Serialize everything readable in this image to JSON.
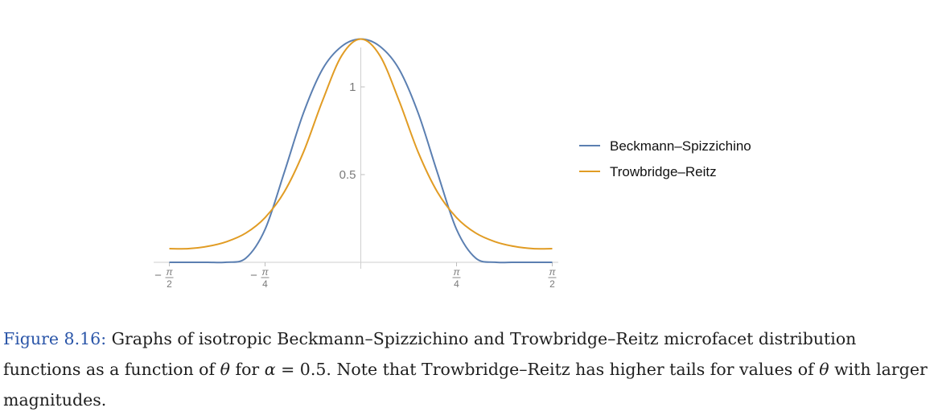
{
  "chart_data": {
    "type": "line",
    "x_ticks": [
      {
        "value": -1.5708,
        "sign": "−",
        "num": "π",
        "den": "2"
      },
      {
        "value": -0.7854,
        "sign": "−",
        "num": "π",
        "den": "4"
      },
      {
        "value": 0.7854,
        "sign": "",
        "num": "π",
        "den": "4"
      },
      {
        "value": 1.5708,
        "sign": "",
        "num": "π",
        "den": "2"
      }
    ],
    "y_ticks": [
      {
        "value": 0.5,
        "label": "0.5"
      },
      {
        "value": 1,
        "label": "1"
      }
    ],
    "xlim": [
      -1.62,
      1.62
    ],
    "ylim": [
      0,
      1.28
    ],
    "grid": false,
    "legend_position": "right",
    "series": [
      {
        "name": "Beckmann–Spizzichino",
        "color": "#5b7fb1",
        "x": [
          -1.5708,
          -1.4137,
          -1.2566,
          -1.0996,
          -0.9425,
          -0.7854,
          -0.6283,
          -0.4712,
          -0.3142,
          -0.1571,
          0,
          0.1571,
          0.3142,
          0.4712,
          0.6283,
          0.7854,
          0.9425,
          1.0996,
          1.2566,
          1.4137,
          1.5708
        ],
        "y": [
          0,
          0,
          0,
          0.0004,
          0.024,
          0.188,
          0.512,
          0.85,
          1.101,
          1.231,
          1.273,
          1.231,
          1.101,
          0.85,
          0.512,
          0.188,
          0.024,
          0.0004,
          0,
          0,
          0
        ]
      },
      {
        "name": "Trowbridge–Reitz",
        "color": "#e19c24",
        "x": [
          -1.5708,
          -1.4137,
          -1.2566,
          -1.0996,
          -0.9425,
          -0.7854,
          -0.6283,
          -0.4712,
          -0.3142,
          -0.1571,
          0,
          0.1571,
          0.3142,
          0.4712,
          0.6283,
          0.7854,
          0.9425,
          1.0996,
          1.2566,
          1.4137,
          1.5708
        ],
        "y": [
          0.078,
          0.078,
          0.091,
          0.118,
          0.167,
          0.255,
          0.401,
          0.627,
          0.921,
          1.178,
          1.273,
          1.178,
          0.921,
          0.627,
          0.401,
          0.255,
          0.167,
          0.118,
          0.091,
          0.078,
          0.078
        ]
      }
    ]
  },
  "caption": {
    "figure_label": "Figure 8.16:",
    "part1": " Graphs of isotropic Beckmann–Spizzichino and Trowbridge–Reitz microfacet distribution functions as a function of ",
    "theta": "θ",
    "part2": " for ",
    "alpha": "α",
    "equals": " = ",
    "alpha_value": "0.5",
    "part3": ". Note that Trowbridge–Reitz has higher tails for values of ",
    "part4": " with larger magnitudes."
  }
}
